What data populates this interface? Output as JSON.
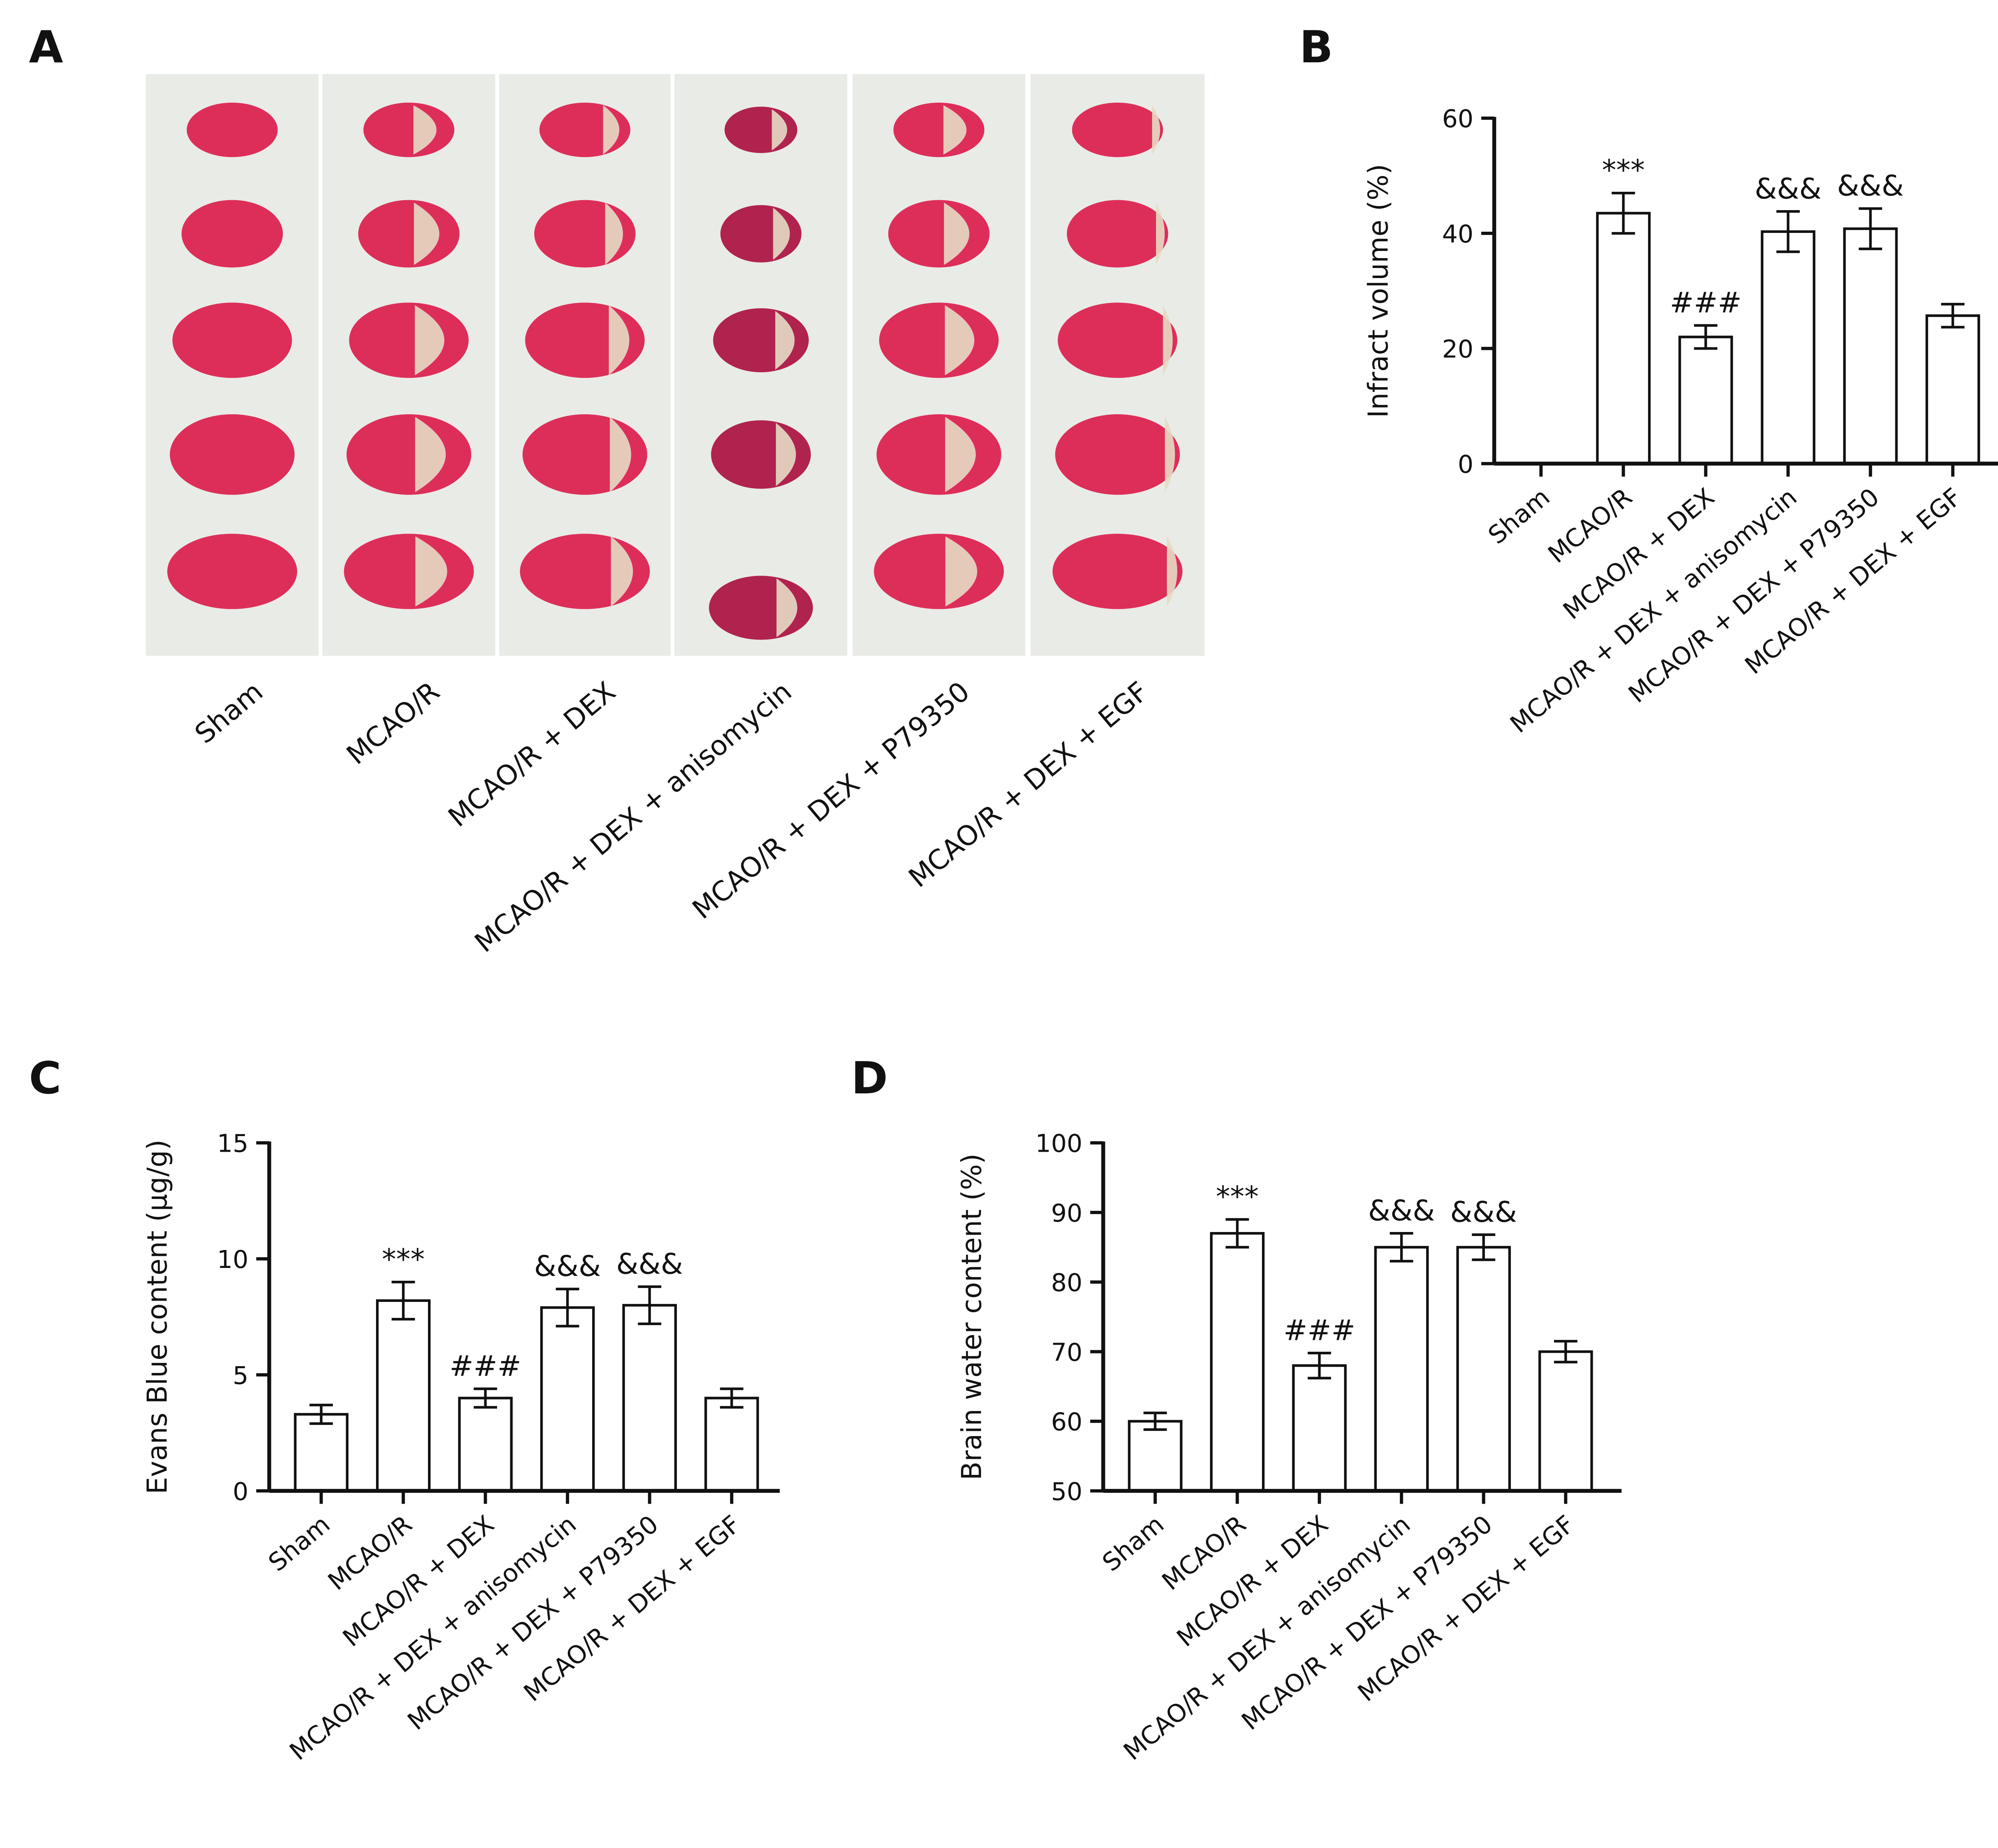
{
  "panel_a": {
    "label": "A",
    "groups": [
      "Sham",
      "MCAO/R",
      "MCAO/R + DEX",
      "MCAO/R + DEX + anisomycin",
      "MCAO/R + DEX + P79350",
      "MCAO/R + DEX + EGF"
    ]
  },
  "chart_data": [
    {
      "type": "bar",
      "panel_label": "B",
      "y_label": "Infract volume (%)",
      "categories": [
        "Sham",
        "MCAO/R",
        "MCAO/R + DEX",
        "MCAO/R + DEX + anisomycin",
        "MCAO/R + DEX + P79350",
        "MCAO/R + DEX + EGF"
      ],
      "values": [
        0,
        43.5,
        22,
        40.3,
        40.8,
        25.7
      ],
      "errors": [
        0,
        3.5,
        2,
        3.5,
        3.5,
        2
      ],
      "annotations": [
        null,
        "***",
        "###",
        "&&&",
        "&&&",
        null
      ],
      "color": "#ffffff",
      "ylim": [
        0,
        60
      ],
      "yticks": [
        0,
        20,
        40,
        60
      ]
    },
    {
      "type": "bar",
      "panel_label": "C",
      "y_label": "Evans Blue content (μg/g)",
      "categories": [
        "Sham",
        "MCAO/R",
        "MCAO/R + DEX",
        "MCAO/R + DEX + anisomycin",
        "MCAO/R + DEX + P79350",
        "MCAO/R + DEX + EGF"
      ],
      "values": [
        3.3,
        8.2,
        4.0,
        7.9,
        8.0,
        4.0
      ],
      "errors": [
        0.4,
        0.8,
        0.4,
        0.8,
        0.8,
        0.4
      ],
      "annotations": [
        null,
        "***",
        "###",
        "&&&",
        "&&&",
        null
      ],
      "color": "#ffffff",
      "ylim": [
        0,
        15
      ],
      "yticks": [
        0,
        5,
        10,
        15
      ]
    },
    {
      "type": "bar",
      "panel_label": "D",
      "y_label": "Brain water content (%)",
      "categories": [
        "Sham",
        "MCAO/R",
        "MCAO/R + DEX",
        "MCAO/R + DEX + anisomycin",
        "MCAO/R + DEX + P79350",
        "MCAO/R + DEX + EGF"
      ],
      "values": [
        60,
        87,
        68,
        85,
        85,
        70
      ],
      "errors": [
        1.2,
        2,
        1.8,
        2,
        1.8,
        1.5
      ],
      "annotations": [
        null,
        "***",
        "###",
        "&&&",
        "&&&",
        null
      ],
      "color": "#ffffff",
      "ylim": [
        50,
        100
      ],
      "yticks": [
        50,
        60,
        70,
        80,
        90,
        100
      ]
    }
  ]
}
